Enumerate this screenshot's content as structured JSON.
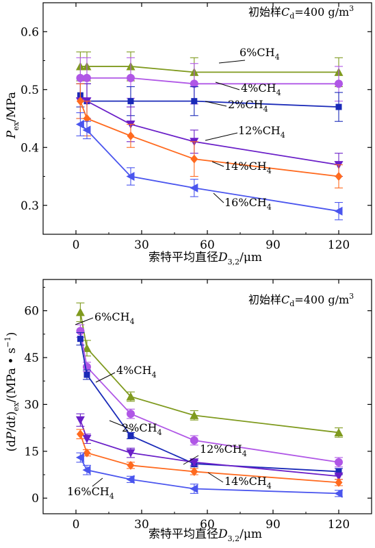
{
  "chart_data": [
    {
      "type": "line",
      "annotation": "初始样Cd=400 g/m3",
      "annotation_parts": {
        "prefix": "初始样",
        "var": "C",
        "sub": "d",
        "suffix": "=400 g/m",
        "sup": "3"
      },
      "xlabel": "索特平均直径D3,2/μm",
      "xlabel_parts": {
        "prefix": "索特平均直径",
        "var": "D",
        "sub": "3,2",
        "suffix": "/μm"
      },
      "ylabel": "Pex/MPa",
      "ylabel_parts": {
        "var": "P",
        "sub": "ex",
        "suffix": "/MPa"
      },
      "xlim": [
        -15,
        135
      ],
      "ylim": [
        0.25,
        0.65
      ],
      "xticks": [
        0,
        30,
        60,
        90,
        120
      ],
      "xtick_labels": [
        "0",
        "30",
        "60",
        "90",
        "120"
      ],
      "yticks": [
        0.3,
        0.4,
        0.5,
        0.6
      ],
      "ytick_labels": [
        "0.3",
        "0.4",
        "0.5",
        "0.6"
      ],
      "grid": false,
      "series": [
        {
          "name": "6%CH4",
          "name_parts": {
            "text": "6%CH",
            "sub": "4"
          },
          "color": "#7f9a1e",
          "marker": "triangle-up",
          "x": [
            2,
            5,
            25,
            54,
            120
          ],
          "y": [
            0.54,
            0.54,
            0.54,
            0.53,
            0.53
          ],
          "err": [
            0.025,
            0.025,
            0.025,
            0.025,
            0.025
          ]
        },
        {
          "name": "4%CH4",
          "name_parts": {
            "text": "4%CH",
            "sub": "4"
          },
          "color": "#b057e6",
          "marker": "circle",
          "x": [
            2,
            5,
            25,
            54,
            120
          ],
          "y": [
            0.52,
            0.52,
            0.52,
            0.51,
            0.51
          ],
          "err": [
            0.035,
            0.035,
            0.035,
            0.035,
            0.03
          ]
        },
        {
          "name": "2%CH4",
          "name_parts": {
            "text": "2%CH",
            "sub": "4"
          },
          "color": "#1a2ab8",
          "marker": "square",
          "x": [
            2,
            5,
            25,
            54,
            120
          ],
          "y": [
            0.49,
            0.48,
            0.48,
            0.48,
            0.47
          ],
          "err": [
            0.02,
            0.03,
            0.025,
            0.025,
            0.025
          ]
        },
        {
          "name": "12%CH4",
          "name_parts": {
            "text": "12%CH",
            "sub": "4"
          },
          "color": "#6a1fc8",
          "marker": "triangle-down",
          "x": [
            2,
            5,
            25,
            54,
            120
          ],
          "y": [
            0.48,
            0.48,
            0.44,
            0.41,
            0.37
          ],
          "err": [
            0.03,
            0.03,
            0.03,
            0.02,
            0.02
          ]
        },
        {
          "name": "14%CH4",
          "name_parts": {
            "text": "14%CH",
            "sub": "4"
          },
          "color": "#ff6a1f",
          "marker": "diamond",
          "x": [
            2,
            5,
            25,
            54,
            120
          ],
          "y": [
            0.48,
            0.45,
            0.42,
            0.38,
            0.35
          ],
          "err": [
            0.03,
            0.03,
            0.02,
            0.03,
            0.02
          ]
        },
        {
          "name": "16%CH4",
          "name_parts": {
            "text": "16%CH",
            "sub": "4"
          },
          "color": "#4a55ee",
          "marker": "triangle-left",
          "x": [
            2,
            5,
            25,
            54,
            120
          ],
          "y": [
            0.44,
            0.43,
            0.35,
            0.33,
            0.29
          ],
          "err": [
            0.02,
            0.015,
            0.015,
            0.015,
            0.015
          ]
        }
      ]
    },
    {
      "type": "line",
      "annotation": "初始样Cd=400 g/m3",
      "annotation_parts": {
        "prefix": "初始样",
        "var": "C",
        "sub": "d",
        "suffix": "=400 g/m",
        "sup": "3"
      },
      "xlabel": "索特平均直径D3,2/μm",
      "xlabel_parts": {
        "prefix": "索特平均直径",
        "var": "D",
        "sub": "3,2",
        "suffix": "/μm"
      },
      "ylabel": "(dP/dt)ex/(MPa·s−1)",
      "ylabel_parts": {
        "a": "(d",
        "var1": "P",
        "b": "/d",
        "var2": "t",
        "c": ")",
        "sub": "ex",
        "d": "/(MPa • s",
        "sup": "−1",
        "e": ")"
      },
      "xlim": [
        -15,
        135
      ],
      "ylim": [
        -5,
        70
      ],
      "xticks": [
        0,
        30,
        60,
        90,
        120
      ],
      "xtick_labels": [
        "0",
        "30",
        "60",
        "90",
        "120"
      ],
      "yticks": [
        0,
        15,
        30,
        45,
        60
      ],
      "ytick_labels": [
        "0",
        "15",
        "30",
        "45",
        "60"
      ],
      "grid": false,
      "series": [
        {
          "name": "6%CH4",
          "name_parts": {
            "text": "6%CH",
            "sub": "4"
          },
          "color": "#7f9a1e",
          "marker": "triangle-up",
          "x": [
            2,
            5,
            25,
            54,
            120
          ],
          "y": [
            59.5,
            48,
            32.5,
            26.5,
            21
          ],
          "err": [
            3,
            2.5,
            1.5,
            1.5,
            1.5
          ]
        },
        {
          "name": "4%CH4",
          "name_parts": {
            "text": "4%CH",
            "sub": "4"
          },
          "color": "#b057e6",
          "marker": "circle",
          "x": [
            2,
            5,
            25,
            54,
            120
          ],
          "y": [
            53.5,
            42,
            27,
            18.5,
            11.5
          ],
          "err": [
            2,
            1.5,
            1.5,
            1.5,
            1.5
          ]
        },
        {
          "name": "2%CH4",
          "name_parts": {
            "text": "2%CH",
            "sub": "4"
          },
          "color": "#1a2ab8",
          "marker": "square",
          "x": [
            2,
            5,
            25,
            54,
            120
          ],
          "y": [
            51,
            39.5,
            20,
            11,
            8.5
          ],
          "err": [
            2,
            1.5,
            1,
            1,
            1
          ]
        },
        {
          "name": "12%CH4",
          "name_parts": {
            "text": "12%CH",
            "sub": "4"
          },
          "color": "#6a1fc8",
          "marker": "triangle-down",
          "x": [
            2,
            5,
            25,
            54,
            120
          ],
          "y": [
            25,
            19,
            14.5,
            11.5,
            7
          ],
          "err": [
            2,
            1.5,
            1.5,
            1,
            1
          ]
        },
        {
          "name": "14%CH4",
          "name_parts": {
            "text": "14%CH",
            "sub": "4"
          },
          "color": "#ff6a1f",
          "marker": "diamond",
          "x": [
            2,
            5,
            25,
            54,
            120
          ],
          "y": [
            20.5,
            14.5,
            10.5,
            8.5,
            5
          ],
          "err": [
            1.5,
            1,
            1,
            1,
            1
          ]
        },
        {
          "name": "16%CH4",
          "name_parts": {
            "text": "16%CH",
            "sub": "4"
          },
          "color": "#4a55ee",
          "marker": "triangle-left",
          "x": [
            2,
            5,
            25,
            54,
            120
          ],
          "y": [
            13,
            9,
            6,
            3,
            1.5
          ],
          "err": [
            1.5,
            1.5,
            1,
            1.5,
            1
          ]
        }
      ]
    }
  ]
}
